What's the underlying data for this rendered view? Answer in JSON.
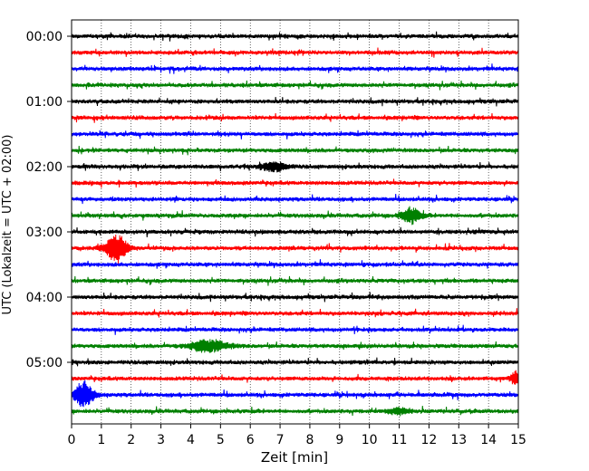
{
  "chart_data": {
    "type": "line",
    "subtype": "helicorder",
    "title": "",
    "xlabel": "Zeit  [min]",
    "ylabel": "UTC (Lokalzeit = UTC + 02:00)",
    "xlim": [
      0,
      15
    ],
    "x_ticks": [
      0,
      1,
      2,
      3,
      4,
      5,
      6,
      7,
      8,
      9,
      10,
      11,
      12,
      13,
      14,
      15
    ],
    "row_interval_min": 15,
    "row_count": 24,
    "y_tick_labels": [
      {
        "row": 0,
        "label": "00:00"
      },
      {
        "row": 4,
        "label": "01:00"
      },
      {
        "row": 8,
        "label": "02:00"
      },
      {
        "row": 12,
        "label": "03:00"
      },
      {
        "row": 16,
        "label": "04:00"
      },
      {
        "row": 20,
        "label": "05:00"
      }
    ],
    "grid": {
      "vertical": true,
      "style": "dotted"
    },
    "color_cycle": [
      "#000000",
      "#ff0000",
      "#0000ff",
      "#008000"
    ],
    "noise_level": 0.22,
    "events": [
      {
        "row": 8,
        "t_min": 6.8,
        "half_width_min": 0.6,
        "amplitude": 0.55
      },
      {
        "row": 11,
        "t_min": 11.4,
        "half_width_min": 0.45,
        "amplitude": 0.9
      },
      {
        "row": 13,
        "t_min": 1.5,
        "half_width_min": 0.5,
        "amplitude": 1.7
      },
      {
        "row": 19,
        "t_min": 4.6,
        "half_width_min": 0.9,
        "amplitude": 0.7
      },
      {
        "row": 21,
        "t_min": 14.9,
        "half_width_min": 0.2,
        "amplitude": 0.8
      },
      {
        "row": 22,
        "t_min": 0.4,
        "half_width_min": 0.45,
        "amplitude": 1.5
      },
      {
        "row": 23,
        "t_min": 11.0,
        "half_width_min": 0.5,
        "amplitude": 0.35
      }
    ]
  }
}
